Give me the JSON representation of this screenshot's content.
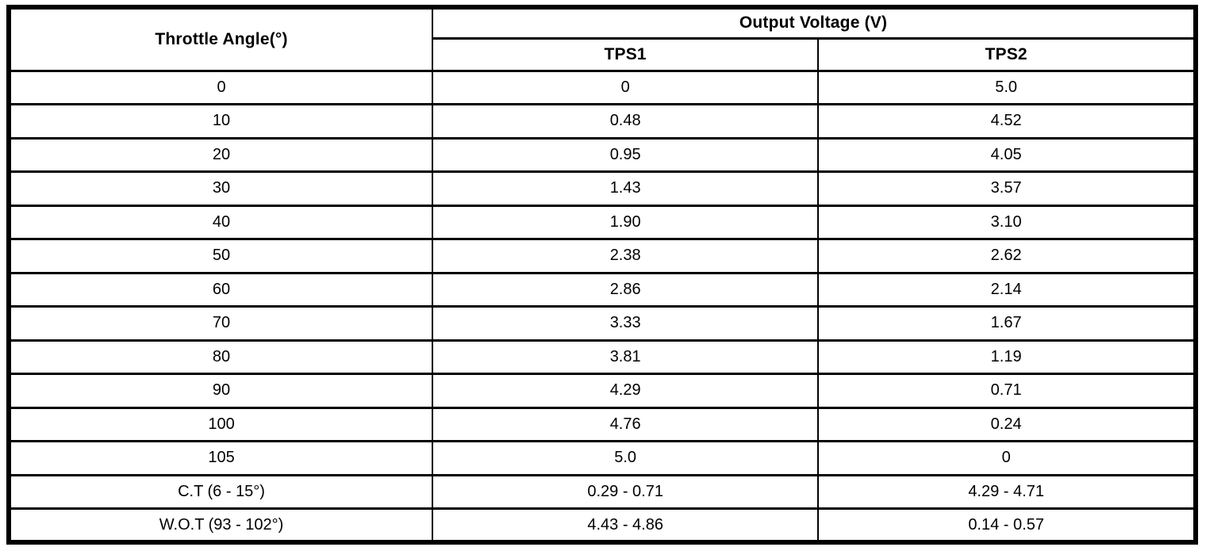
{
  "table": {
    "header": {
      "col_angle": "Throttle Angle(°)",
      "col_output": "Output Voltage (V)",
      "col_tps1": "TPS1",
      "col_tps2": "TPS2"
    },
    "rows": [
      {
        "angle": "0",
        "tps1": "0",
        "tps2": "5.0"
      },
      {
        "angle": "10",
        "tps1": "0.48",
        "tps2": "4.52"
      },
      {
        "angle": "20",
        "tps1": "0.95",
        "tps2": "4.05"
      },
      {
        "angle": "30",
        "tps1": "1.43",
        "tps2": "3.57"
      },
      {
        "angle": "40",
        "tps1": "1.90",
        "tps2": "3.10"
      },
      {
        "angle": "50",
        "tps1": "2.38",
        "tps2": "2.62"
      },
      {
        "angle": "60",
        "tps1": "2.86",
        "tps2": "2.14"
      },
      {
        "angle": "70",
        "tps1": "3.33",
        "tps2": "1.67"
      },
      {
        "angle": "80",
        "tps1": "3.81",
        "tps2": "1.19"
      },
      {
        "angle": "90",
        "tps1": "4.29",
        "tps2": "0.71"
      },
      {
        "angle": "100",
        "tps1": "4.76",
        "tps2": "0.24"
      },
      {
        "angle": "105",
        "tps1": "5.0",
        "tps2": "0"
      },
      {
        "angle": "C.T (6 - 15°)",
        "tps1": "0.29 - 0.71",
        "tps2": "4.29 - 4.71"
      },
      {
        "angle": "W.O.T (93 - 102°)",
        "tps1": "4.43 - 4.86",
        "tps2": "0.14 - 0.57"
      }
    ]
  },
  "colors": {
    "border": "#000000",
    "background": "#ffffff",
    "text": "#000000"
  }
}
